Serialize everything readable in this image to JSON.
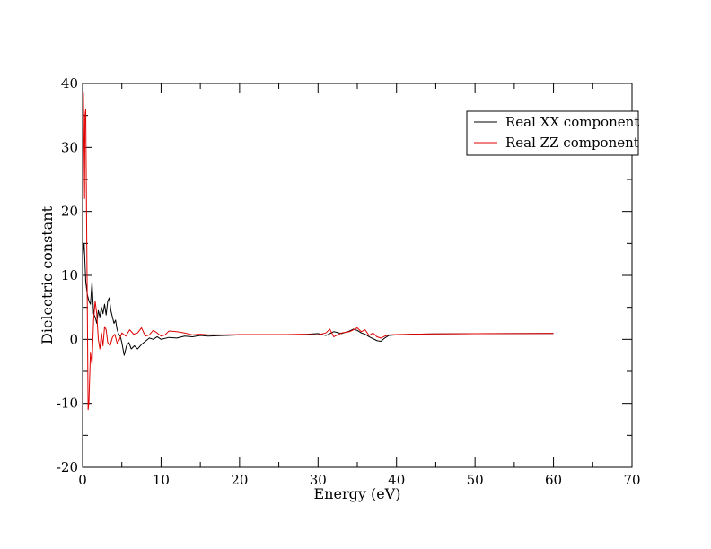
{
  "chart_data": {
    "type": "line",
    "title": "",
    "xlabel": "Energy (eV)",
    "ylabel": "Dielectric constant",
    "xlim": [
      0,
      70
    ],
    "ylim": [
      -20,
      40
    ],
    "x_ticks": [
      0,
      10,
      20,
      30,
      40,
      50,
      60,
      70
    ],
    "y_ticks": [
      -20,
      -10,
      0,
      10,
      20,
      30,
      40
    ],
    "x_tick_labels": [
      "0",
      "10",
      "20",
      "30",
      "40",
      "50",
      "60",
      "70"
    ],
    "y_tick_labels": [
      "-20",
      "-10",
      "0",
      "10",
      "20",
      "30",
      "40"
    ],
    "grid": false,
    "legend_position": "top-right",
    "series": [
      {
        "name": "Real XX component",
        "color": "#000000",
        "x": [
          0.0,
          0.1,
          0.2,
          0.3,
          0.4,
          0.5,
          0.6,
          0.8,
          1.0,
          1.2,
          1.4,
          1.6,
          1.8,
          2.0,
          2.2,
          2.4,
          2.6,
          2.8,
          3.0,
          3.2,
          3.4,
          3.6,
          3.8,
          4.0,
          4.2,
          4.4,
          4.6,
          4.8,
          5.0,
          5.3,
          5.6,
          5.9,
          6.2,
          6.6,
          7.0,
          7.5,
          8.0,
          8.5,
          9.0,
          9.5,
          10.0,
          11.0,
          12.0,
          13.0,
          14.0,
          15.0,
          16.0,
          18.0,
          20.0,
          22.0,
          24.0,
          26.0,
          28.0,
          30.0,
          31.0,
          32.0,
          33.0,
          34.0,
          34.5,
          35.0,
          35.5,
          36.0,
          36.5,
          37.0,
          37.5,
          38.0,
          38.5,
          39.0,
          40.0,
          42.0,
          45.0,
          50.0,
          55.0,
          60.0
        ],
        "values": [
          12.0,
          14.0,
          15.0,
          12.0,
          9.0,
          8.0,
          7.0,
          6.0,
          5.5,
          9.0,
          4.0,
          3.5,
          2.5,
          4.5,
          3.5,
          5.0,
          4.0,
          5.5,
          3.8,
          6.0,
          6.5,
          4.5,
          3.5,
          2.5,
          3.0,
          1.5,
          0.8,
          0.5,
          -0.5,
          -2.5,
          -1.0,
          -0.5,
          -1.5,
          -1.0,
          -1.5,
          -0.8,
          -0.3,
          0.2,
          0.0,
          0.4,
          0.0,
          0.3,
          0.2,
          0.5,
          0.4,
          0.6,
          0.5,
          0.6,
          0.7,
          0.7,
          0.7,
          0.7,
          0.75,
          0.9,
          0.6,
          1.2,
          0.9,
          1.3,
          1.6,
          1.4,
          1.0,
          0.8,
          0.4,
          0.1,
          -0.2,
          -0.3,
          0.2,
          0.6,
          0.7,
          0.8,
          0.85,
          0.88,
          0.9,
          0.92
        ]
      },
      {
        "name": "Real ZZ component",
        "color": "#e00000",
        "x": [
          0.0,
          0.1,
          0.2,
          0.25,
          0.3,
          0.4,
          0.5,
          0.6,
          0.7,
          0.8,
          0.9,
          1.0,
          1.2,
          1.4,
          1.6,
          1.8,
          2.0,
          2.2,
          2.4,
          2.6,
          2.8,
          3.0,
          3.2,
          3.5,
          3.8,
          4.1,
          4.4,
          4.7,
          5.0,
          5.5,
          6.0,
          6.5,
          7.0,
          7.5,
          8.0,
          8.5,
          9.0,
          9.5,
          10.0,
          10.5,
          11.0,
          12.0,
          13.0,
          14.0,
          15.0,
          16.0,
          18.0,
          20.0,
          22.0,
          24.0,
          26.0,
          28.0,
          30.0,
          31.0,
          31.5,
          32.0,
          33.0,
          34.0,
          34.5,
          35.0,
          35.5,
          36.0,
          36.5,
          37.0,
          37.5,
          38.0,
          38.5,
          39.0,
          40.0,
          42.0,
          45.0,
          50.0,
          55.0,
          60.0
        ],
        "values": [
          25.0,
          38.5,
          28.0,
          22.0,
          35.0,
          36.0,
          20.0,
          5.0,
          -11.0,
          -10.0,
          -6.0,
          -2.0,
          -4.0,
          3.0,
          6.0,
          4.0,
          0.0,
          -1.5,
          1.0,
          -1.0,
          2.0,
          1.5,
          -0.5,
          -1.0,
          0.3,
          0.8,
          -0.6,
          0.0,
          1.0,
          0.5,
          1.5,
          0.8,
          1.0,
          1.8,
          0.5,
          0.7,
          1.4,
          1.0,
          0.5,
          0.7,
          1.3,
          1.2,
          1.0,
          0.7,
          0.8,
          0.7,
          0.7,
          0.75,
          0.75,
          0.75,
          0.75,
          0.8,
          0.7,
          1.0,
          1.6,
          0.4,
          1.0,
          1.2,
          1.5,
          1.8,
          1.2,
          1.5,
          0.6,
          1.0,
          0.4,
          0.2,
          0.5,
          0.7,
          0.75,
          0.8,
          0.85,
          0.88,
          0.9,
          0.92
        ]
      }
    ]
  }
}
